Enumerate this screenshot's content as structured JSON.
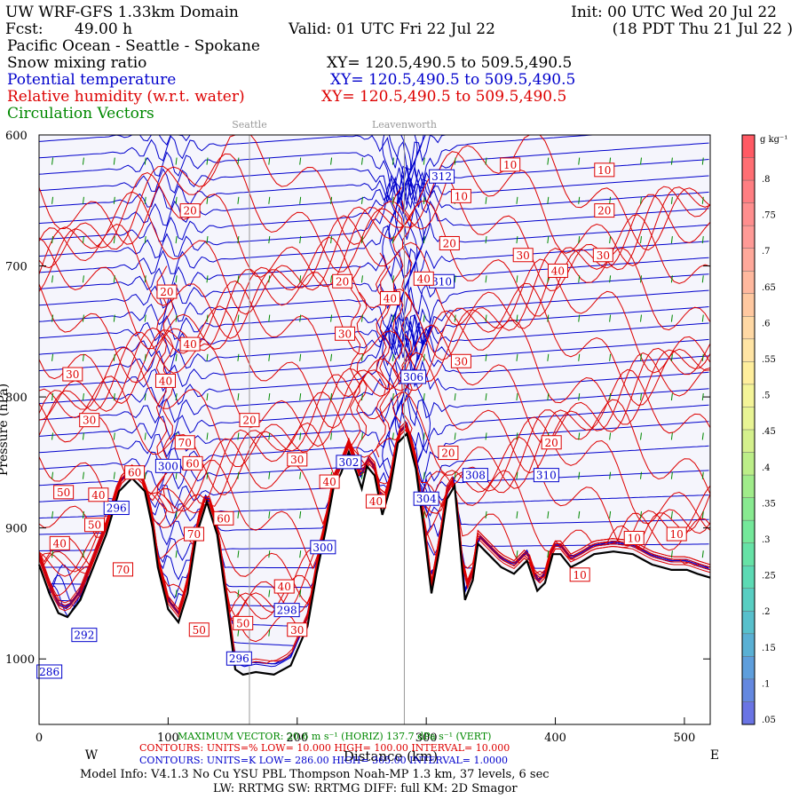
{
  "header": {
    "title": "UW WRF-GFS 1.33km Domain",
    "init": "Init: 00 UTC Wed 20 Jul 22",
    "fcst_label": "Fcst:",
    "fcst_value": "49.00 h",
    "valid": "Valid: 01 UTC Fri 22 Jul 22",
    "valid_local": "(18 PDT Thu 21 Jul 22  )",
    "region": "Pacific Ocean - Seattle - Spokane",
    "fields": [
      {
        "name": "Snow mixing ratio",
        "xy": "XY= 120.5,490.5 to 509.5,490.5",
        "color": "#000000"
      },
      {
        "name": "Potential temperature",
        "xy": "XY= 120.5,490.5 to 509.5,490.5",
        "color": "#0000cc"
      },
      {
        "name": "Relative humidity (w.r.t. water)",
        "xy": "XY= 120.5,490.5 to 509.5,490.5",
        "color": "#dd0000"
      },
      {
        "name": "Circulation Vectors",
        "xy": "",
        "color": "#008800"
      }
    ]
  },
  "chart_data": {
    "type": "line",
    "xlim": [
      0,
      520
    ],
    "ylim": [
      1050,
      600
    ],
    "x_ticks": [
      0,
      100,
      200,
      300,
      400,
      500
    ],
    "x_tick_labels": [
      "0",
      "100",
      "200",
      "300",
      "400",
      "500"
    ],
    "y_ticks": [
      600,
      700,
      800,
      900,
      1000
    ],
    "y_tick_labels": [
      "600",
      "700",
      "800",
      "900",
      "1000"
    ],
    "xlabel": "Distance (km)",
    "x_direction_left": "W",
    "x_direction_right": "E",
    "ylabel_partial": "Pressure (hPa)",
    "locations": [
      {
        "name": "Seattle",
        "x": 163
      },
      {
        "name": "Leavenworth",
        "x": 283
      }
    ],
    "terrain": [
      [
        0,
        928
      ],
      [
        8,
        950
      ],
      [
        15,
        965
      ],
      [
        22,
        968
      ],
      [
        32,
        955
      ],
      [
        42,
        930
      ],
      [
        52,
        905
      ],
      [
        62,
        872
      ],
      [
        72,
        862
      ],
      [
        82,
        872
      ],
      [
        88,
        900
      ],
      [
        92,
        930
      ],
      [
        100,
        962
      ],
      [
        108,
        972
      ],
      [
        115,
        950
      ],
      [
        122,
        905
      ],
      [
        130,
        880
      ],
      [
        138,
        905
      ],
      [
        145,
        955
      ],
      [
        152,
        1008
      ],
      [
        158,
        1012
      ],
      [
        168,
        1010
      ],
      [
        182,
        1012
      ],
      [
        195,
        1005
      ],
      [
        208,
        975
      ],
      [
        215,
        935
      ],
      [
        222,
        902
      ],
      [
        228,
        870
      ],
      [
        234,
        858
      ],
      [
        240,
        842
      ],
      [
        246,
        858
      ],
      [
        250,
        870
      ],
      [
        254,
        853
      ],
      [
        260,
        860
      ],
      [
        266,
        890
      ],
      [
        272,
        870
      ],
      [
        278,
        835
      ],
      [
        285,
        828
      ],
      [
        292,
        855
      ],
      [
        298,
        900
      ],
      [
        304,
        950
      ],
      [
        310,
        918
      ],
      [
        316,
        878
      ],
      [
        322,
        868
      ],
      [
        330,
        955
      ],
      [
        336,
        940
      ],
      [
        340,
        912
      ],
      [
        348,
        920
      ],
      [
        358,
        930
      ],
      [
        368,
        935
      ],
      [
        378,
        925
      ],
      [
        386,
        948
      ],
      [
        392,
        942
      ],
      [
        398,
        920
      ],
      [
        404,
        920
      ],
      [
        412,
        930
      ],
      [
        420,
        926
      ],
      [
        430,
        920
      ],
      [
        445,
        918
      ],
      [
        460,
        920
      ],
      [
        475,
        928
      ],
      [
        490,
        932
      ],
      [
        502,
        932
      ],
      [
        510,
        935
      ],
      [
        520,
        938
      ]
    ],
    "theta_series": {
      "name": "Potential temperature",
      "color": "#0000cc",
      "levels": [
        {
          "value": 286,
          "label_x": 8,
          "label_p": 1010
        },
        {
          "value": 292,
          "label_x": 35,
          "label_p": 982
        },
        {
          "value": 296,
          "label_x": 60,
          "label_p": 885
        },
        {
          "value": 296,
          "label_x": 155,
          "label_p": 1000
        },
        {
          "value": 298,
          "label_x": 192,
          "label_p": 963
        },
        {
          "value": 300,
          "label_x": 100,
          "label_p": 853
        },
        {
          "value": 300,
          "label_x": 220,
          "label_p": 915
        },
        {
          "value": 302,
          "label_x": 240,
          "label_p": 850
        },
        {
          "value": 304,
          "label_x": 300,
          "label_p": 878
        },
        {
          "value": 306,
          "label_x": 290,
          "label_p": 785
        },
        {
          "value": 308,
          "label_x": 338,
          "label_p": 860
        },
        {
          "value": 310,
          "label_x": 312,
          "label_p": 712
        },
        {
          "value": 310,
          "label_x": 393,
          "label_p": 860
        },
        {
          "value": 312,
          "label_x": 312,
          "label_p": 632
        }
      ]
    },
    "rh_series": {
      "name": "Relative humidity (w.r.t. water)",
      "color": "#dd0000",
      "labels": [
        {
          "value": 10,
          "x": 365,
          "p": 623
        },
        {
          "value": 10,
          "x": 438,
          "p": 627
        },
        {
          "value": 10,
          "x": 327,
          "p": 647
        },
        {
          "value": 20,
          "x": 117,
          "p": 658
        },
        {
          "value": 20,
          "x": 438,
          "p": 658
        },
        {
          "value": 20,
          "x": 318,
          "p": 683
        },
        {
          "value": 30,
          "x": 375,
          "p": 692
        },
        {
          "value": 30,
          "x": 437,
          "p": 692
        },
        {
          "value": 40,
          "x": 402,
          "p": 704
        },
        {
          "value": 20,
          "x": 99,
          "p": 720
        },
        {
          "value": 20,
          "x": 235,
          "p": 712
        },
        {
          "value": 40,
          "x": 298,
          "p": 710
        },
        {
          "value": 40,
          "x": 272,
          "p": 725
        },
        {
          "value": 30,
          "x": 237,
          "p": 752
        },
        {
          "value": 40,
          "x": 117,
          "p": 760
        },
        {
          "value": 30,
          "x": 26,
          "p": 783
        },
        {
          "value": 40,
          "x": 98,
          "p": 788
        },
        {
          "value": 30,
          "x": 327,
          "p": 773
        },
        {
          "value": 30,
          "x": 39,
          "p": 818
        },
        {
          "value": 20,
          "x": 163,
          "p": 818
        },
        {
          "value": 70,
          "x": 113,
          "p": 835
        },
        {
          "value": 20,
          "x": 397,
          "p": 835
        },
        {
          "value": 30,
          "x": 200,
          "p": 848
        },
        {
          "value": 60,
          "x": 119,
          "p": 851
        },
        {
          "value": 60,
          "x": 74,
          "p": 858
        },
        {
          "value": 20,
          "x": 317,
          "p": 843
        },
        {
          "value": 40,
          "x": 225,
          "p": 865
        },
        {
          "value": 50,
          "x": 19,
          "p": 873
        },
        {
          "value": 40,
          "x": 46,
          "p": 875
        },
        {
          "value": 40,
          "x": 261,
          "p": 880
        },
        {
          "value": 60,
          "x": 143,
          "p": 893
        },
        {
          "value": 50,
          "x": 43,
          "p": 898
        },
        {
          "value": 70,
          "x": 120,
          "p": 905
        },
        {
          "value": 40,
          "x": 16,
          "p": 912
        },
        {
          "value": 70,
          "x": 65,
          "p": 932
        },
        {
          "value": 10,
          "x": 461,
          "p": 908
        },
        {
          "value": 10,
          "x": 494,
          "p": 905
        },
        {
          "value": 10,
          "x": 419,
          "p": 936
        },
        {
          "value": 40,
          "x": 190,
          "p": 945
        },
        {
          "value": 50,
          "x": 158,
          "p": 973
        },
        {
          "value": 50,
          "x": 124,
          "p": 978
        },
        {
          "value": 30,
          "x": 200,
          "p": 978
        }
      ]
    },
    "colorbar": {
      "unit": "g kg⁻¹",
      "tick_labels": [
        ".8",
        ".75",
        ".7",
        ".65",
        ".6",
        ".55",
        ".5",
        ".45",
        ".4",
        ".35",
        ".3",
        ".25",
        ".2",
        ".15",
        ".1",
        ".05"
      ],
      "colors": [
        "#ff5a64",
        "#ff6e73",
        "#ff7e82",
        "#ff8e8e",
        "#ff9a96",
        "#ffa89a",
        "#ffb89e",
        "#ffc8a0",
        "#ffd8a4",
        "#ffe4a4",
        "#ffee9c",
        "#f4f498",
        "#e8f494",
        "#d4f08c",
        "#bcee88",
        "#a0ec8a",
        "#88ea90",
        "#74e89a",
        "#66e2a6",
        "#5cdab4",
        "#58cec2",
        "#58c0cc",
        "#5ab0d4",
        "#5e9edc",
        "#6488e0",
        "#6a74e4"
      ]
    }
  },
  "footer": {
    "max_vector": "MAXIMUM VECTOR: 20.6 m s⁻¹ (HORIZ)    137.7 dPa s⁻¹ (VERT)",
    "rh_contours": "CONTOURS:  UNITS=%  LOW=   10.000      HIGH=   100.00      INTERVAL=   10.000",
    "theta_contours": "CONTOURS:  UNITS=K  LOW=  286.00      HIGH=   365.00      INTERVAL=   1.0000",
    "model_info": "Model Info: V4.1.3    No Cu    YSU PBL  Thompson     Noah-MP    1.3 km,  37 levels,    6 sec",
    "model_info2": "LW: RRTMG SW: RRTMG    DIFF: full   KM: 2D Smagor"
  }
}
